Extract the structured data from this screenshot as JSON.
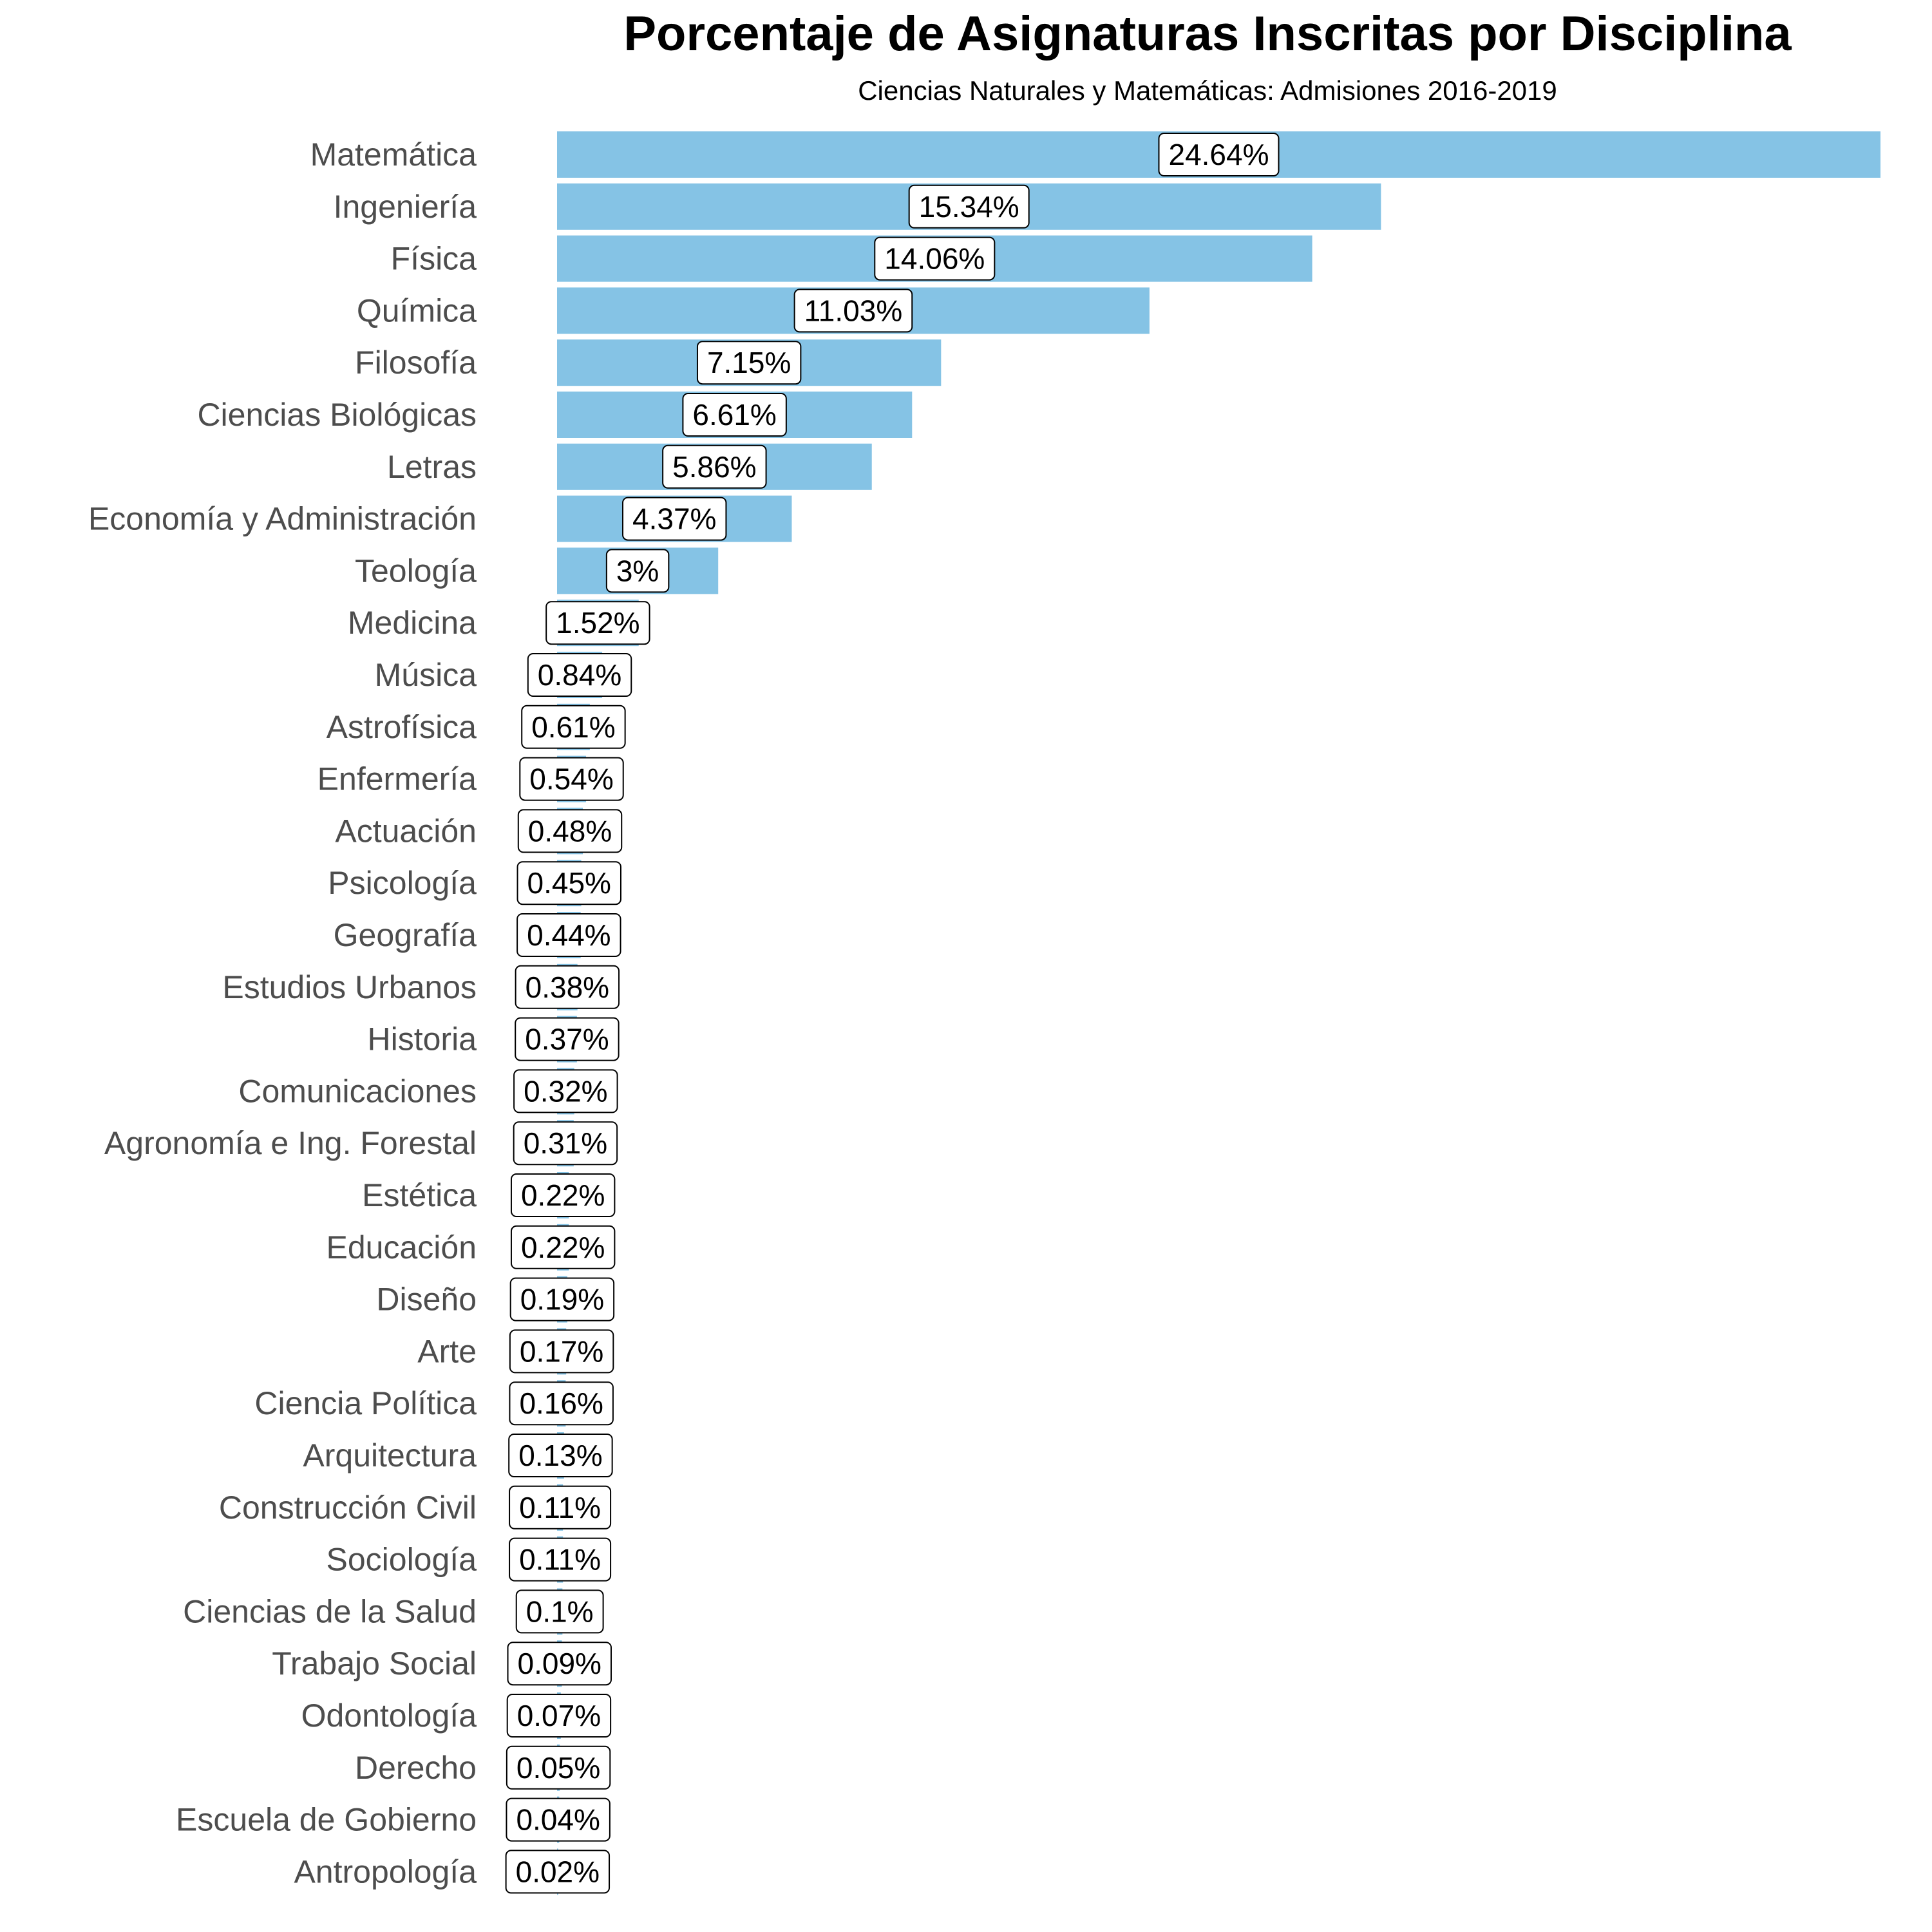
{
  "chart_data": {
    "type": "bar",
    "orientation": "horizontal",
    "title": "Porcentaje de Asignaturas Inscritas por Disciplina",
    "subtitle": "Ciencias Naturales y Matemáticas: Admisiones 2016-2019",
    "xlabel": "",
    "ylabel": "",
    "grid": false,
    "legend": "none",
    "bar_color": "#85c3e5",
    "categories": [
      "Matemática",
      "Ingeniería",
      "Física",
      "Química",
      "Filosofía",
      "Ciencias Biológicas",
      "Letras",
      "Economía y Administración",
      "Teología",
      "Medicina",
      "Música",
      "Astrofísica",
      "Enfermería",
      "Actuación",
      "Psicología",
      "Geografía",
      "Estudios Urbanos",
      "Historia",
      "Comunicaciones",
      "Agronomía e Ing. Forestal",
      "Estética",
      "Educación",
      "Diseño",
      "Arte",
      "Ciencia Política",
      "Arquitectura",
      "Construcción Civil",
      "Sociología",
      "Ciencias de la Salud",
      "Trabajo Social",
      "Odontología",
      "Derecho",
      "Escuela de Gobierno",
      "Antropología"
    ],
    "values": [
      24.64,
      15.34,
      14.06,
      11.03,
      7.15,
      6.61,
      5.86,
      4.37,
      3,
      1.52,
      0.84,
      0.61,
      0.54,
      0.48,
      0.45,
      0.44,
      0.38,
      0.37,
      0.32,
      0.31,
      0.22,
      0.22,
      0.19,
      0.17,
      0.16,
      0.13,
      0.11,
      0.11,
      0.1,
      0.09,
      0.07,
      0.05,
      0.04,
      0.02
    ],
    "data_labels": [
      "24.64%",
      "15.34%",
      "14.06%",
      "11.03%",
      "7.15%",
      "6.61%",
      "5.86%",
      "4.37%",
      "3%",
      "1.52%",
      "0.84%",
      "0.61%",
      "0.54%",
      "0.48%",
      "0.45%",
      "0.44%",
      "0.38%",
      "0.37%",
      "0.32%",
      "0.31%",
      "0.22%",
      "0.22%",
      "0.19%",
      "0.17%",
      "0.16%",
      "0.13%",
      "0.11%",
      "0.11%",
      "0.1%",
      "0.09%",
      "0.07%",
      "0.05%",
      "0.04%",
      "0.02%"
    ],
    "xlim": [
      0,
      24.64
    ]
  }
}
